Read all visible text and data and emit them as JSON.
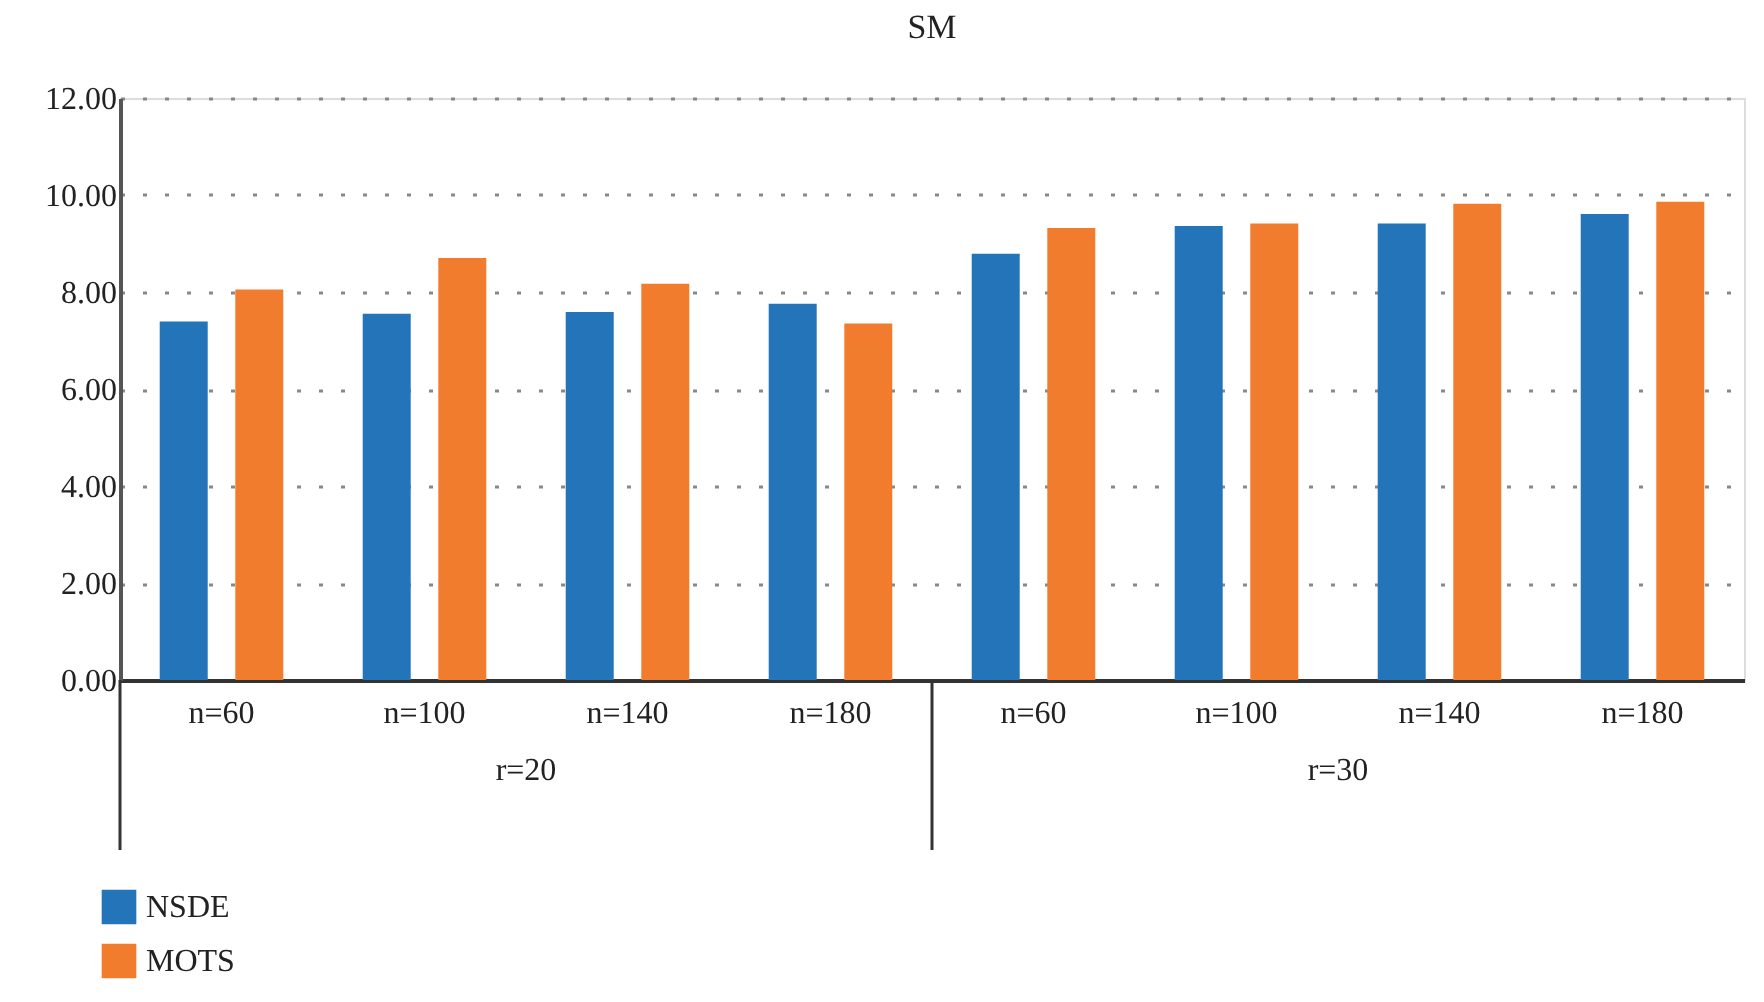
{
  "chart_data": {
    "type": "bar",
    "title": "SM",
    "categories": [
      "n=60",
      "n=100",
      "n=140",
      "n=180",
      "n=60",
      "n=100",
      "n=140",
      "n=180"
    ],
    "series": [
      {
        "name": "NSDE",
        "color": "#2474b9",
        "values": [
          7.39,
          7.55,
          7.59,
          7.76,
          8.79,
          9.36,
          9.41,
          9.61
        ]
      },
      {
        "name": "MOTS",
        "color": "#f27c2e",
        "values": [
          8.05,
          8.7,
          8.17,
          7.35,
          9.32,
          9.41,
          9.82,
          9.86
        ]
      }
    ],
    "annotations": [
      "r=20",
      "r=30"
    ],
    "ylim": [
      0,
      12
    ],
    "yticks": [
      {
        "value": 0,
        "label": "0.00"
      },
      {
        "value": 2,
        "label": "2.00"
      },
      {
        "value": 4,
        "label": "4.00"
      },
      {
        "value": 6,
        "label": "6.00"
      },
      {
        "value": 8,
        "label": "8.00"
      },
      {
        "value": 10,
        "label": "10.00"
      },
      {
        "value": 12,
        "label": "12.00"
      }
    ],
    "grid": "y",
    "legend": "bottom left"
  }
}
